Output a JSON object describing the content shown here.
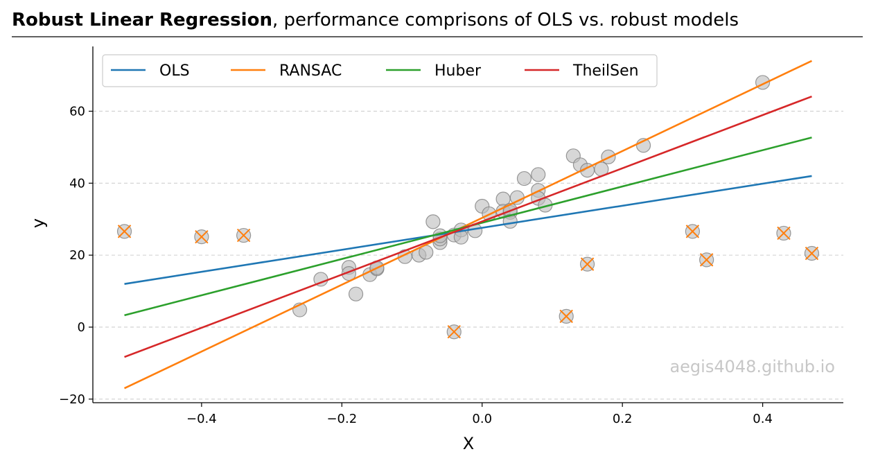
{
  "chart_data": {
    "type": "scatter",
    "title_bold": "Robust Linear Regression",
    "title_rest": ", performance comprisons of OLS vs. robust models",
    "xlabel": "X",
    "ylabel": "y",
    "xlim": [
      -0.555,
      0.515
    ],
    "ylim": [
      -21,
      78
    ],
    "x_ticks": [
      -0.4,
      -0.2,
      0.0,
      0.2,
      0.4
    ],
    "x_tick_labels": [
      "−0.4",
      "−0.2",
      "0.0",
      "0.2",
      "0.4"
    ],
    "y_ticks": [
      -20,
      0,
      20,
      40,
      60
    ],
    "y_tick_labels": [
      "−20",
      "0",
      "20",
      "40",
      "60"
    ],
    "grid": "y-dashed",
    "legend_position": "top-left",
    "watermark": "aegis4048.github.io",
    "points": [
      {
        "x": -0.26,
        "y": 4.8
      },
      {
        "x": -0.23,
        "y": 13.3
      },
      {
        "x": -0.19,
        "y": 16.6
      },
      {
        "x": -0.19,
        "y": 14.9
      },
      {
        "x": -0.18,
        "y": 9.2
      },
      {
        "x": -0.16,
        "y": 14.6
      },
      {
        "x": -0.15,
        "y": 16.2
      },
      {
        "x": -0.15,
        "y": 16.5
      },
      {
        "x": -0.11,
        "y": 19.6
      },
      {
        "x": -0.09,
        "y": 20.0
      },
      {
        "x": -0.08,
        "y": 20.8
      },
      {
        "x": -0.07,
        "y": 29.3
      },
      {
        "x": -0.06,
        "y": 23.5
      },
      {
        "x": -0.06,
        "y": 24.5
      },
      {
        "x": -0.06,
        "y": 25.4
      },
      {
        "x": -0.04,
        "y": 25.6
      },
      {
        "x": -0.03,
        "y": 27.0
      },
      {
        "x": -0.03,
        "y": 25.0
      },
      {
        "x": -0.01,
        "y": 26.8
      },
      {
        "x": 0.0,
        "y": 33.6
      },
      {
        "x": 0.01,
        "y": 31.5
      },
      {
        "x": 0.03,
        "y": 35.6
      },
      {
        "x": 0.03,
        "y": 32.2
      },
      {
        "x": 0.04,
        "y": 31.9
      },
      {
        "x": 0.04,
        "y": 32.5
      },
      {
        "x": 0.04,
        "y": 29.4
      },
      {
        "x": 0.05,
        "y": 36.0
      },
      {
        "x": 0.06,
        "y": 41.3
      },
      {
        "x": 0.08,
        "y": 42.4
      },
      {
        "x": 0.08,
        "y": 38.0
      },
      {
        "x": 0.08,
        "y": 35.8
      },
      {
        "x": 0.09,
        "y": 33.9
      },
      {
        "x": 0.13,
        "y": 47.6
      },
      {
        "x": 0.14,
        "y": 45.1
      },
      {
        "x": 0.15,
        "y": 43.6
      },
      {
        "x": 0.17,
        "y": 43.9
      },
      {
        "x": 0.18,
        "y": 47.3
      },
      {
        "x": 0.23,
        "y": 50.5
      },
      {
        "x": 0.4,
        "y": 68.0
      }
    ],
    "outliers": [
      {
        "x": -0.51,
        "y": 26.6
      },
      {
        "x": -0.4,
        "y": 25.1
      },
      {
        "x": -0.34,
        "y": 25.5
      },
      {
        "x": -0.04,
        "y": -1.3
      },
      {
        "x": 0.12,
        "y": 3.0
      },
      {
        "x": 0.15,
        "y": 17.5
      },
      {
        "x": 0.3,
        "y": 26.6
      },
      {
        "x": 0.32,
        "y": 18.7
      },
      {
        "x": 0.43,
        "y": 26.1
      },
      {
        "x": 0.47,
        "y": 20.5
      }
    ],
    "point_color": "#bdbdbd",
    "point_edge_color": "#808080",
    "outlier_marker_color": "#ff7f0e",
    "series": [
      {
        "name": "OLS",
        "color": "#1f77b4",
        "x": [
          -0.51,
          0.47
        ],
        "y": [
          12.0,
          42.0
        ]
      },
      {
        "name": "RANSAC",
        "color": "#ff7f0e",
        "x": [
          -0.51,
          0.47
        ],
        "y": [
          -17.0,
          74.0
        ]
      },
      {
        "name": "Huber",
        "color": "#2ca02c",
        "x": [
          -0.51,
          0.47
        ],
        "y": [
          3.3,
          52.7
        ]
      },
      {
        "name": "TheilSen",
        "color": "#d62728",
        "x": [
          -0.51,
          0.47
        ],
        "y": [
          -8.3,
          64.1
        ]
      }
    ]
  }
}
